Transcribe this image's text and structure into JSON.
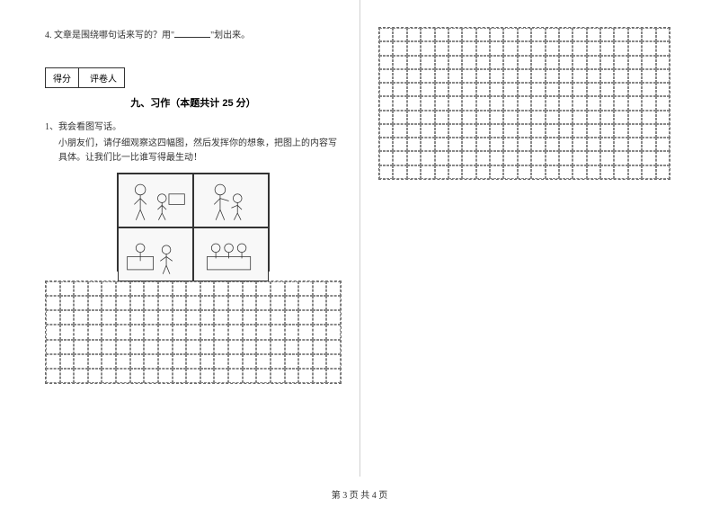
{
  "question4": {
    "prefix": "4. 文章是围绕哪句话来写的？用\"",
    "suffix": "\"划出来。"
  },
  "scoreBox": {
    "score": "得分",
    "grader": "评卷人"
  },
  "section": {
    "title": "九、习作（本题共计 25 分）"
  },
  "subQuestion": {
    "number": "1、我会看图写话。",
    "instruction": "小朋友们，请仔细观察这四幅图，然后发挥你的想象，把图上的内容写具体。让我们比一比谁写得最生动！"
  },
  "gridConfig": {
    "leftCols": 21,
    "leftRows": 7,
    "rightCols": 21,
    "rightRows": 11
  },
  "footer": {
    "text": "第 3 页 共 4 页"
  },
  "colors": {
    "text": "#333333",
    "background": "#ffffff",
    "gridBorder": "#888888",
    "divider": "#d0d0d0"
  }
}
